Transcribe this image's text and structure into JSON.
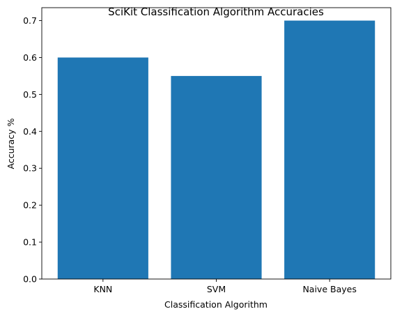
{
  "chart_data": {
    "type": "bar",
    "title": "SciKit Classification Algorithm Accuracies",
    "xlabel": "Classification Algorithm",
    "ylabel": "Accuracy %",
    "categories": [
      "KNN",
      "SVM",
      "Naive Bayes"
    ],
    "values": [
      0.6,
      0.55,
      0.7
    ],
    "ylim": [
      0,
      0.735
    ],
    "yticks": [
      0.0,
      0.1,
      0.2,
      0.3,
      0.4,
      0.5,
      0.6,
      0.7
    ],
    "ytick_labels": [
      "0.0",
      "0.1",
      "0.2",
      "0.3",
      "0.4",
      "0.5",
      "0.6",
      "0.7"
    ],
    "bar_color": "#1f77b4",
    "grid": false,
    "legend": "none"
  }
}
